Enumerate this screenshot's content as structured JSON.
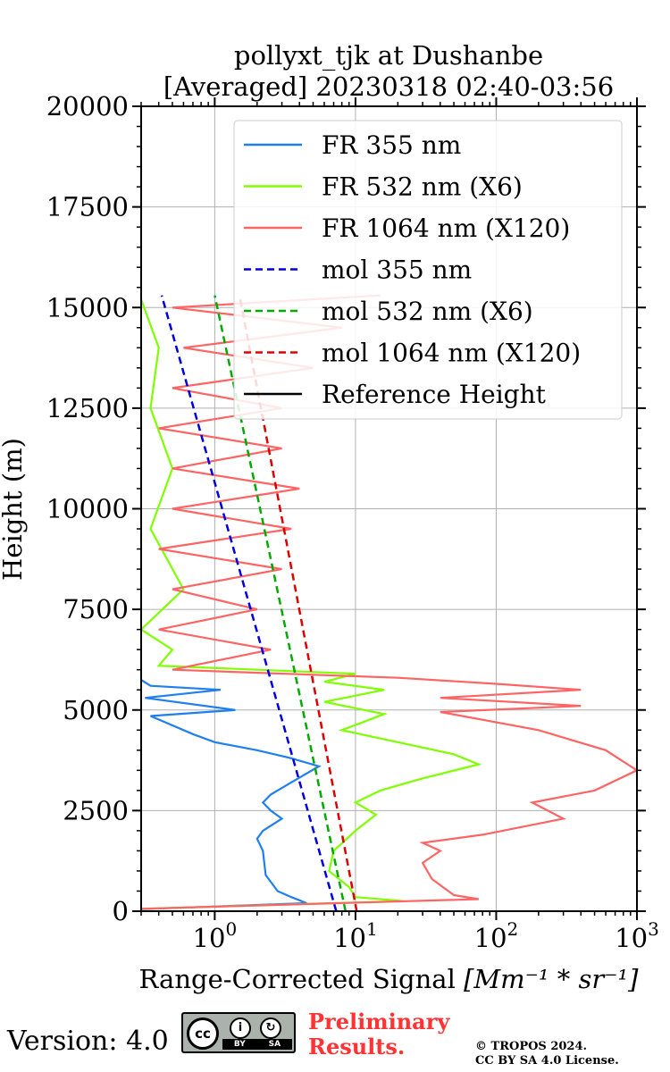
{
  "chart_data": {
    "type": "line",
    "title_line1": "pollyxt_tjk at Dushanbe",
    "title_line2": "[Averaged] 20230318 02:40-03:56",
    "xlabel": "Range-Corrected Signal",
    "xlabel_unit": "[Mm⁻¹ * sr⁻¹]",
    "ylabel": "Height (m)",
    "xscale": "log",
    "xlim": [
      0.3,
      1000
    ],
    "ylim": [
      0,
      20000
    ],
    "grid": true,
    "legend_position": "upper-right",
    "x_tick_labels": [
      {
        "value": 1,
        "base": "10",
        "exp": "0"
      },
      {
        "value": 10,
        "base": "10",
        "exp": "1"
      },
      {
        "value": 100,
        "base": "10",
        "exp": "2"
      },
      {
        "value": 1000,
        "base": "10",
        "exp": "3"
      }
    ],
    "y_ticks": [
      0,
      2500,
      5000,
      7500,
      10000,
      12500,
      15000,
      17500,
      20000
    ],
    "series": [
      {
        "name": "FR 355 nm",
        "color": "#1f7fef",
        "style": "solid",
        "points": [
          [
            0.3,
            50
          ],
          [
            4.5,
            200
          ],
          [
            3.5,
            350
          ],
          [
            2.8,
            500
          ],
          [
            2.3,
            900
          ],
          [
            2.2,
            1500
          ],
          [
            2.0,
            1800
          ],
          [
            2.2,
            2000
          ],
          [
            3.0,
            2300
          ],
          [
            2.5,
            2500
          ],
          [
            2.2,
            2700
          ],
          [
            2.5,
            2900
          ],
          [
            3.5,
            3200
          ],
          [
            5.5,
            3600
          ],
          [
            3.5,
            3800
          ],
          [
            2.0,
            4000
          ],
          [
            1.0,
            4200
          ],
          [
            0.7,
            4400
          ],
          [
            0.35,
            4850
          ],
          [
            1.4,
            5000
          ],
          [
            0.32,
            5300
          ],
          [
            1.1,
            5500
          ],
          [
            0.35,
            5600
          ],
          [
            0.3,
            5750
          ]
        ]
      },
      {
        "name": "FR 532 nm (X6)",
        "color": "#7fff00",
        "style": "solid",
        "points": [
          [
            0.3,
            60
          ],
          [
            22,
            250
          ],
          [
            10,
            350
          ],
          [
            9,
            600
          ],
          [
            6.5,
            1000
          ],
          [
            7,
            1500
          ],
          [
            10,
            2000
          ],
          [
            14,
            2400
          ],
          [
            10,
            2700
          ],
          [
            15,
            3000
          ],
          [
            30,
            3300
          ],
          [
            75,
            3650
          ],
          [
            50,
            3900
          ],
          [
            20,
            4200
          ],
          [
            8,
            4500
          ],
          [
            16,
            4900
          ],
          [
            6,
            5200
          ],
          [
            16,
            5500
          ],
          [
            6,
            5700
          ],
          [
            10,
            5900
          ],
          [
            0.4,
            6100
          ],
          [
            0.5,
            6500
          ],
          [
            0.3,
            7000
          ],
          [
            0.6,
            8000
          ],
          [
            0.35,
            9500
          ],
          [
            0.5,
            11000
          ],
          [
            0.35,
            12500
          ],
          [
            0.4,
            14000
          ],
          [
            0.3,
            15200
          ]
        ]
      },
      {
        "name": "FR 1064 nm (X120)",
        "color": "#ff6464",
        "style": "solid",
        "points": [
          [
            0.3,
            60
          ],
          [
            75,
            300
          ],
          [
            50,
            400
          ],
          [
            35,
            800
          ],
          [
            30,
            1200
          ],
          [
            40,
            1500
          ],
          [
            30,
            1700
          ],
          [
            80,
            1900
          ],
          [
            300,
            2300
          ],
          [
            180,
            2700
          ],
          [
            500,
            3000
          ],
          [
            1000,
            3500
          ],
          [
            600,
            4000
          ],
          [
            200,
            4500
          ],
          [
            40,
            4950
          ],
          [
            400,
            5100
          ],
          [
            40,
            5300
          ],
          [
            400,
            5500
          ],
          [
            100,
            5650
          ],
          [
            20,
            5800
          ],
          [
            0.5,
            6000
          ],
          [
            2.5,
            6500
          ],
          [
            0.4,
            7000
          ],
          [
            2.0,
            7500
          ],
          [
            0.5,
            8000
          ],
          [
            3.0,
            8500
          ],
          [
            0.4,
            9000
          ],
          [
            3.5,
            9500
          ],
          [
            0.5,
            10000
          ],
          [
            4.0,
            10500
          ],
          [
            0.5,
            11000
          ],
          [
            3.0,
            11500
          ],
          [
            0.4,
            12000
          ],
          [
            3.0,
            12500
          ],
          [
            0.5,
            13000
          ],
          [
            5.0,
            13500
          ],
          [
            0.6,
            14000
          ],
          [
            8.0,
            14500
          ],
          [
            0.5,
            15000
          ],
          [
            15,
            15300
          ]
        ]
      },
      {
        "name": "mol 355 nm",
        "color": "#0000dd",
        "style": "dashed",
        "points": [
          [
            7.3,
            0
          ],
          [
            0.42,
            15300
          ]
        ]
      },
      {
        "name": "mol 532 nm (X6)",
        "color": "#00aa00",
        "style": "dashed",
        "points": [
          [
            8.5,
            0
          ],
          [
            1.0,
            15300
          ]
        ]
      },
      {
        "name": "mol 1064 nm (X120)",
        "color": "#dd0000",
        "style": "dashed",
        "points": [
          [
            10.2,
            0
          ],
          [
            1.5,
            15300
          ]
        ]
      },
      {
        "name": "Reference Height",
        "color": "#000000",
        "style": "solid",
        "points": []
      }
    ]
  },
  "footer": {
    "version": "Version: 4.0",
    "license_badge": "cc-by-sa-badge",
    "preliminary": "Preliminary\nResults.",
    "copyright": "© TROPOS 2024.\nCC BY SA 4.0 License."
  }
}
